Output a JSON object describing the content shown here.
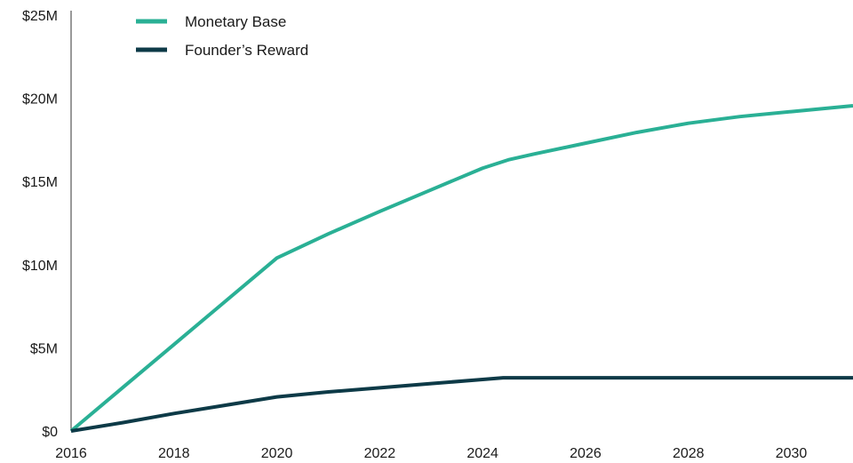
{
  "chart_data": {
    "type": "line",
    "title": "",
    "xlabel": "",
    "ylabel": "",
    "xlim": [
      2016,
      2031.2
    ],
    "ylim": [
      0,
      25
    ],
    "grid": false,
    "legend_position": "top-left",
    "y_ticks": [
      {
        "value": 0,
        "label": "$0"
      },
      {
        "value": 5,
        "label": "$5M"
      },
      {
        "value": 10,
        "label": "$10M"
      },
      {
        "value": 15,
        "label": "$15M"
      },
      {
        "value": 20,
        "label": "$20M"
      },
      {
        "value": 25,
        "label": "$25M"
      }
    ],
    "x_ticks": [
      {
        "value": 2016,
        "label": "2016"
      },
      {
        "value": 2018,
        "label": "2018"
      },
      {
        "value": 2020,
        "label": "2020"
      },
      {
        "value": 2022,
        "label": "2022"
      },
      {
        "value": 2024,
        "label": "2024"
      },
      {
        "value": 2026,
        "label": "2026"
      },
      {
        "value": 2028,
        "label": "2028"
      },
      {
        "value": 2030,
        "label": "2030"
      }
    ],
    "series": [
      {
        "name": "Monetary Base",
        "color": "#2ab095",
        "points": [
          [
            2016.0,
            0.0
          ],
          [
            2017.0,
            2.6
          ],
          [
            2018.0,
            5.2
          ],
          [
            2019.0,
            7.8
          ],
          [
            2020.0,
            10.4
          ],
          [
            2021.0,
            11.85
          ],
          [
            2022.0,
            13.2
          ],
          [
            2023.0,
            14.5
          ],
          [
            2024.0,
            15.8
          ],
          [
            2024.5,
            16.3
          ],
          [
            2025.0,
            16.65
          ],
          [
            2026.0,
            17.3
          ],
          [
            2027.0,
            17.95
          ],
          [
            2028.0,
            18.5
          ],
          [
            2029.0,
            18.9
          ],
          [
            2030.0,
            19.2
          ],
          [
            2031.2,
            19.55
          ]
        ]
      },
      {
        "name": "Founder’s Reward",
        "color": "#0d3a47",
        "points": [
          [
            2016.0,
            0.0
          ],
          [
            2017.0,
            0.5
          ],
          [
            2018.0,
            1.05
          ],
          [
            2019.0,
            1.55
          ],
          [
            2020.0,
            2.05
          ],
          [
            2021.0,
            2.35
          ],
          [
            2022.0,
            2.6
          ],
          [
            2023.0,
            2.85
          ],
          [
            2024.0,
            3.1
          ],
          [
            2024.4,
            3.2
          ],
          [
            2025.0,
            3.2
          ],
          [
            2026.0,
            3.2
          ],
          [
            2028.0,
            3.2
          ],
          [
            2030.0,
            3.2
          ],
          [
            2031.2,
            3.2
          ]
        ]
      }
    ]
  }
}
